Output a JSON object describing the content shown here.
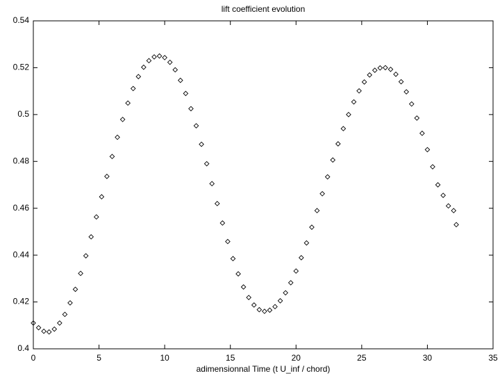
{
  "chart_data": {
    "type": "scatter",
    "title": "lift coefficient evolution",
    "x_label": "adimensionnal Time (t U_inf / chord)",
    "x": [
      0,
      0.4,
      0.8,
      1.2,
      1.6,
      2.0,
      2.4,
      2.8,
      3.2,
      3.6,
      4.0,
      4.4,
      4.8,
      5.2,
      5.6,
      6.0,
      6.4,
      6.8,
      7.2,
      7.6,
      8.0,
      8.4,
      8.8,
      9.2,
      9.6,
      10.0,
      10.4,
      10.8,
      11.2,
      11.6,
      12.0,
      12.4,
      12.8,
      13.2,
      13.6,
      14.0,
      14.4,
      14.8,
      15.2,
      15.6,
      16.0,
      16.4,
      16.8,
      17.2,
      17.6,
      18.0,
      18.4,
      18.8,
      19.2,
      19.6,
      20.0,
      20.4,
      20.8,
      21.2,
      21.6,
      22.0,
      22.4,
      22.8,
      23.2,
      23.6,
      24.0,
      24.4,
      24.8,
      25.2,
      25.6,
      26.0,
      26.4,
      26.8,
      27.2,
      27.6,
      28.0,
      28.4,
      28.8,
      29.2,
      29.6,
      30.0,
      30.4,
      30.8,
      31.2,
      31.6,
      32.0,
      32.2
    ],
    "values": [
      0.411,
      0.409,
      0.4075,
      0.4072,
      0.4084,
      0.411,
      0.4147,
      0.4196,
      0.4254,
      0.4322,
      0.4397,
      0.4478,
      0.4563,
      0.4649,
      0.4736,
      0.4821,
      0.4903,
      0.4979,
      0.5049,
      0.5111,
      0.5162,
      0.5202,
      0.523,
      0.5246,
      0.525,
      0.5243,
      0.5223,
      0.5191,
      0.5146,
      0.509,
      0.5025,
      0.4952,
      0.4873,
      0.479,
      0.4705,
      0.462,
      0.4537,
      0.4458,
      0.4385,
      0.432,
      0.4264,
      0.4219,
      0.4187,
      0.4167,
      0.416,
      0.4165,
      0.418,
      0.4205,
      0.4239,
      0.4282,
      0.4332,
      0.4389,
      0.4452,
      0.4519,
      0.459,
      0.4662,
      0.4734,
      0.4806,
      0.4875,
      0.494,
      0.5,
      0.5054,
      0.5101,
      0.5139,
      0.5169,
      0.5189,
      0.5199,
      0.52,
      0.5193,
      0.5172,
      0.514,
      0.5097,
      0.5045,
      0.4985,
      0.492,
      0.485,
      0.4777,
      0.47,
      0.4655,
      0.461,
      0.459,
      0.453
    ],
    "color": "#000000",
    "xlim": [
      0,
      35
    ],
    "xticks": [
      0,
      5,
      10,
      15,
      20,
      25,
      30,
      35
    ],
    "ylim": [
      0.4,
      0.54
    ],
    "yticks": [
      0.4,
      0.42,
      0.44,
      0.46,
      0.48,
      0.5,
      0.52,
      0.54
    ]
  }
}
